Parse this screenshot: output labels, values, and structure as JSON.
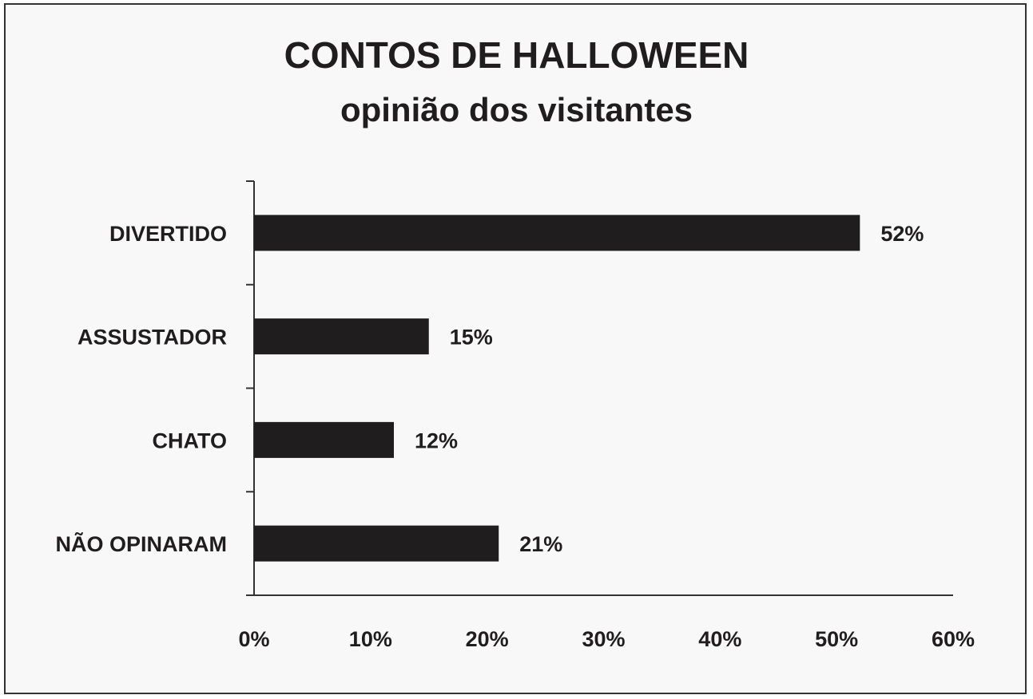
{
  "chart_data": {
    "type": "bar",
    "orientation": "horizontal",
    "title": "CONTOS DE HALLOWEEN",
    "subtitle": "opinião dos visitantes",
    "categories": [
      "DIVERTIDO",
      "ASSUSTADOR",
      "CHATO",
      "NÃO OPINARAM"
    ],
    "values": [
      52,
      15,
      12,
      21
    ],
    "value_labels": [
      "52%",
      "15%",
      "12%",
      "21%"
    ],
    "xlim": [
      0,
      60
    ],
    "xticks": [
      0,
      10,
      20,
      30,
      40,
      50,
      60
    ],
    "xtick_labels": [
      "0%",
      "10%",
      "20%",
      "30%",
      "40%",
      "50%",
      "60%"
    ],
    "xlabel": "",
    "ylabel": "",
    "grid": false,
    "legend": "none",
    "bar_color": "#1f1d1e"
  }
}
